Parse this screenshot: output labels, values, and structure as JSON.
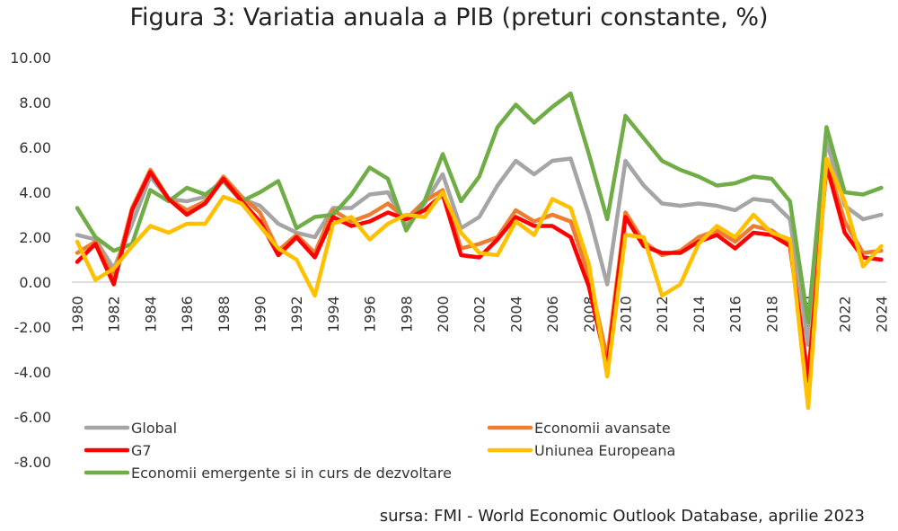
{
  "chart_data": {
    "type": "line",
    "title": "Figura 3: Variatia anuala a PIB (preturi constante, %)",
    "source": "sursa: FMI - World Economic Outlook Database, aprilie 2023",
    "x": [
      1980,
      1981,
      1982,
      1983,
      1984,
      1985,
      1986,
      1987,
      1988,
      1989,
      1990,
      1991,
      1992,
      1993,
      1994,
      1995,
      1996,
      1997,
      1998,
      1999,
      2000,
      2001,
      2002,
      2003,
      2004,
      2005,
      2006,
      2007,
      2008,
      2009,
      2010,
      2011,
      2012,
      2013,
      2014,
      2015,
      2016,
      2017,
      2018,
      2019,
      2020,
      2021,
      2022,
      2023,
      2024
    ],
    "x_tick_labels": [
      "1980",
      "1982",
      "1984",
      "1986",
      "1988",
      "1990",
      "1992",
      "1994",
      "1996",
      "1998",
      "2000",
      "2002",
      "2004",
      "2006",
      "2008",
      "2010",
      "2012",
      "2014",
      "2016",
      "2018",
      "2020",
      "2022",
      "2024"
    ],
    "y_tick_labels": [
      "10.00",
      "8.00",
      "6.00",
      "4.00",
      "2.00",
      "0.00",
      "-2.00",
      "-4.00",
      "-6.00",
      "-8.00"
    ],
    "ylim": [
      -8,
      10
    ],
    "grid": false,
    "legend_position": "bottom-left",
    "series": [
      {
        "name": "Global",
        "color": "#a5a5a5",
        "values": [
          2.1,
          1.9,
          0.6,
          2.6,
          4.7,
          3.7,
          3.6,
          3.8,
          4.6,
          3.7,
          3.4,
          2.6,
          2.2,
          2.0,
          3.3,
          3.3,
          3.9,
          4.0,
          2.5,
          3.5,
          4.8,
          2.4,
          2.9,
          4.3,
          5.4,
          4.8,
          5.4,
          5.5,
          3.0,
          -0.1,
          5.4,
          4.3,
          3.5,
          3.4,
          3.5,
          3.4,
          3.2,
          3.7,
          3.6,
          2.8,
          -2.8,
          6.3,
          3.4,
          2.8,
          3.0
        ]
      },
      {
        "name": "Economii avansate",
        "color": "#ed7d31",
        "values": [
          1.3,
          1.8,
          0.2,
          3.3,
          5.0,
          3.7,
          3.2,
          3.6,
          4.7,
          3.8,
          3.1,
          1.4,
          2.1,
          1.3,
          3.2,
          2.7,
          3.0,
          3.5,
          2.8,
          3.6,
          4.1,
          1.5,
          1.7,
          2.0,
          3.2,
          2.7,
          3.0,
          2.7,
          0.3,
          -3.4,
          3.1,
          1.8,
          1.2,
          1.4,
          2.0,
          2.3,
          1.8,
          2.5,
          2.3,
          1.7,
          -4.2,
          5.4,
          2.7,
          1.3,
          1.4
        ]
      },
      {
        "name": "G7",
        "color": "#ff0000",
        "values": [
          0.9,
          1.7,
          -0.1,
          3.2,
          4.9,
          3.7,
          3.0,
          3.5,
          4.6,
          3.6,
          2.7,
          1.2,
          2.0,
          1.1,
          2.9,
          2.5,
          2.7,
          3.1,
          2.8,
          3.2,
          3.9,
          1.2,
          1.1,
          1.9,
          2.9,
          2.5,
          2.5,
          2.0,
          -0.2,
          -3.8,
          2.9,
          1.6,
          1.3,
          1.3,
          1.8,
          2.1,
          1.5,
          2.2,
          2.1,
          1.6,
          -4.4,
          5.2,
          2.2,
          1.1,
          1.0
        ]
      },
      {
        "name": "Uniunea Europeana",
        "color": "#ffc000",
        "values": [
          1.8,
          0.1,
          0.6,
          1.6,
          2.5,
          2.2,
          2.6,
          2.6,
          3.8,
          3.5,
          2.5,
          1.5,
          1.0,
          -0.6,
          2.6,
          2.9,
          1.9,
          2.6,
          3.0,
          2.9,
          4.0,
          2.2,
          1.3,
          1.2,
          2.7,
          2.1,
          3.7,
          3.3,
          0.8,
          -4.2,
          2.1,
          2.0,
          -0.6,
          -0.1,
          1.7,
          2.5,
          2.0,
          3.0,
          2.2,
          1.9,
          -5.6,
          5.5,
          3.6,
          0.7,
          1.6
        ]
      },
      {
        "name": "Economii emergente si in curs de dezvoltare",
        "color": "#70ad47",
        "values": [
          3.3,
          2.0,
          1.4,
          1.7,
          4.1,
          3.6,
          4.2,
          3.9,
          4.5,
          3.6,
          4.0,
          4.5,
          2.4,
          2.9,
          3.0,
          3.9,
          5.1,
          4.6,
          2.3,
          3.6,
          5.7,
          3.6,
          4.7,
          6.9,
          7.9,
          7.1,
          7.8,
          8.4,
          5.7,
          2.8,
          7.4,
          6.4,
          5.4,
          5.0,
          4.7,
          4.3,
          4.4,
          4.7,
          4.6,
          3.6,
          -1.8,
          6.9,
          4.0,
          3.9,
          4.2
        ]
      }
    ]
  }
}
